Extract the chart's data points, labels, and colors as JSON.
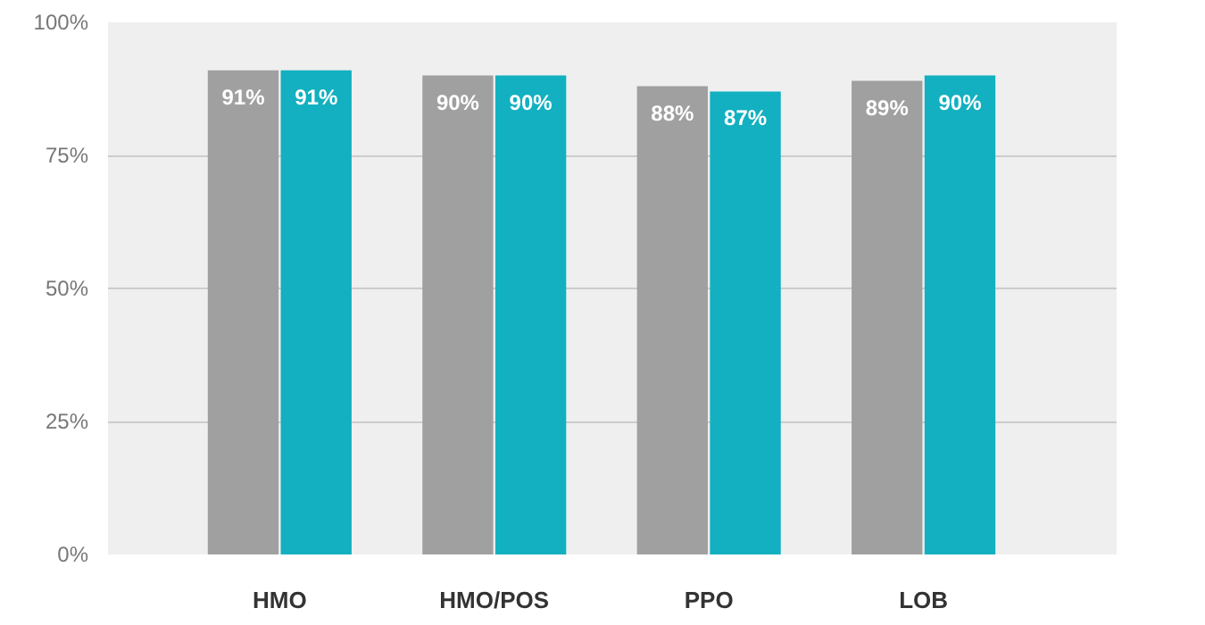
{
  "chart_data": {
    "type": "bar",
    "categories": [
      "HMO",
      "HMO/POS",
      "PPO",
      "LOB"
    ],
    "series": [
      {
        "color": "#a0a0a0",
        "values": [
          91,
          90,
          88,
          89
        ],
        "value_labels": [
          "91%",
          "90%",
          "88%",
          "89%"
        ]
      },
      {
        "color": "#12b0c0",
        "values": [
          91,
          90,
          87,
          90
        ],
        "value_labels": [
          "91%",
          "90%",
          "87%",
          "90%"
        ]
      }
    ],
    "ylim": [
      0,
      100
    ],
    "yticks": [
      {
        "value": 0,
        "label": "0%"
      },
      {
        "value": 25,
        "label": "25%"
      },
      {
        "value": 50,
        "label": "50%"
      },
      {
        "value": 75,
        "label": "75%"
      },
      {
        "value": 100,
        "label": "100%"
      }
    ],
    "grid": "y"
  }
}
